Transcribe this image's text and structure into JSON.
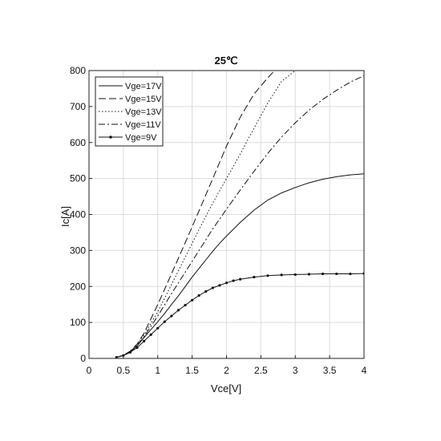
{
  "chart_data": {
    "type": "line",
    "title": "25℃",
    "xlabel": "Vce[V]",
    "ylabel": "Ic[A]",
    "xlim": [
      0,
      4
    ],
    "ylim": [
      0,
      800
    ],
    "xticks": [
      0,
      0.5,
      1,
      1.5,
      2,
      2.5,
      3,
      3.5,
      4
    ],
    "xtick_labels": [
      "0",
      "0.5",
      "1",
      "1.5",
      "2",
      "2.5",
      "3",
      "3.5",
      "4"
    ],
    "yticks": [
      0,
      100,
      200,
      300,
      400,
      500,
      600,
      700,
      800
    ],
    "ytick_labels": [
      "0",
      "100",
      "200",
      "300",
      "400",
      "500",
      "600",
      "700",
      "800"
    ],
    "grid": true,
    "legend_position": "top-left",
    "series": [
      {
        "name": "Vge=17V",
        "style": "solid",
        "x": [
          0.4,
          0.5,
          0.6,
          0.7,
          0.8,
          0.9,
          1.0,
          1.1,
          1.2,
          1.3,
          1.4,
          1.5,
          1.6,
          1.7,
          1.8,
          1.9,
          2.0,
          2.2,
          2.4,
          2.6,
          2.8,
          3.0,
          3.2,
          3.4,
          3.6,
          3.8,
          4.0
        ],
        "y": [
          3,
          8,
          18,
          35,
          58,
          80,
          102,
          125,
          150,
          174,
          200,
          226,
          250,
          274,
          298,
          320,
          340,
          378,
          412,
          440,
          460,
          475,
          488,
          498,
          505,
          510,
          513
        ]
      },
      {
        "name": "Vge=15V",
        "style": "dashed",
        "x": [
          0.4,
          0.5,
          0.6,
          0.7,
          0.8,
          1.0,
          1.2,
          1.4,
          1.6,
          1.8,
          2.0,
          2.2,
          2.4,
          2.6,
          2.7
        ],
        "y": [
          3,
          9,
          20,
          40,
          70,
          150,
          235,
          322,
          410,
          500,
          590,
          670,
          735,
          780,
          800
        ]
      },
      {
        "name": "Vge=13V",
        "style": "dotted",
        "x": [
          0.4,
          0.5,
          0.6,
          0.7,
          0.8,
          1.0,
          1.2,
          1.4,
          1.6,
          1.8,
          2.0,
          2.2,
          2.4,
          2.6,
          2.8,
          3.0
        ],
        "y": [
          3,
          9,
          20,
          38,
          65,
          130,
          205,
          282,
          358,
          432,
          500,
          568,
          640,
          710,
          770,
          800
        ]
      },
      {
        "name": "Vge=11V",
        "style": "dashdot",
        "x": [
          0.4,
          0.5,
          0.6,
          0.7,
          0.8,
          1.0,
          1.2,
          1.4,
          1.6,
          1.8,
          2.0,
          2.2,
          2.4,
          2.6,
          2.8,
          3.0,
          3.2,
          3.4,
          3.6,
          3.8,
          4.0
        ],
        "y": [
          3,
          8,
          19,
          36,
          60,
          118,
          180,
          240,
          300,
          360,
          415,
          468,
          520,
          570,
          615,
          655,
          690,
          720,
          745,
          768,
          786
        ]
      },
      {
        "name": "Vge=9V",
        "style": "solid-marker",
        "x": [
          0.4,
          0.5,
          0.6,
          0.7,
          0.8,
          0.9,
          1.0,
          1.1,
          1.2,
          1.3,
          1.4,
          1.5,
          1.6,
          1.7,
          1.8,
          1.9,
          2.0,
          2.1,
          2.2,
          2.4,
          2.6,
          2.8,
          3.0,
          3.2,
          3.4,
          3.6,
          3.8,
          4.0
        ],
        "y": [
          3,
          8,
          17,
          30,
          48,
          66,
          84,
          102,
          118,
          134,
          148,
          162,
          175,
          186,
          196,
          203,
          210,
          216,
          220,
          226,
          230,
          232,
          233,
          234,
          235,
          235,
          235,
          236
        ]
      }
    ]
  }
}
